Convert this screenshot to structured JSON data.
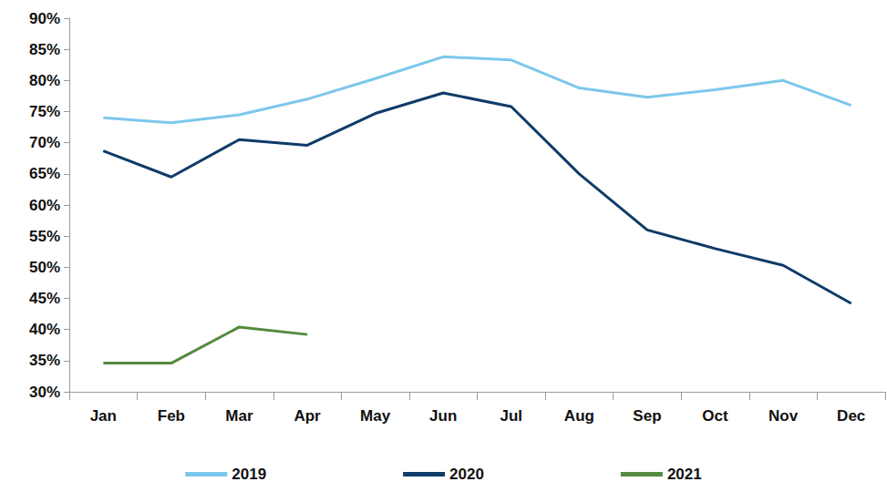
{
  "chart_data": {
    "type": "line",
    "categories": [
      "Jan",
      "Feb",
      "Mar",
      "Apr",
      "May",
      "Jun",
      "Jul",
      "Aug",
      "Sep",
      "Oct",
      "Nov",
      "Dec"
    ],
    "series": [
      {
        "name": "2019",
        "color": "#7cc7ec",
        "values": [
          74,
          73.2,
          74.5,
          77,
          80.3,
          83.8,
          83.3,
          78.8,
          77.3,
          78.5,
          80,
          76
        ]
      },
      {
        "name": "2020",
        "color": "#0f3b68",
        "values": [
          68.7,
          64.5,
          70.5,
          69.6,
          74.7,
          78,
          75.8,
          65,
          56,
          53,
          50.3,
          44.2
        ]
      },
      {
        "name": "2021",
        "color": "#548a3f",
        "values": [
          34.6,
          34.6,
          40.4,
          39.2,
          null,
          null,
          null,
          null,
          null,
          null,
          null,
          null
        ]
      }
    ],
    "ylim": [
      30,
      90
    ],
    "yticks": [
      {
        "value": 30,
        "label": "30%"
      },
      {
        "value": 35,
        "label": "35%"
      },
      {
        "value": 40,
        "label": "40%"
      },
      {
        "value": 45,
        "label": "45%"
      },
      {
        "value": 50,
        "label": "50%"
      },
      {
        "value": 55,
        "label": "55%"
      },
      {
        "value": 60,
        "label": "60%"
      },
      {
        "value": 65,
        "label": "65%"
      },
      {
        "value": 70,
        "label": "70%"
      },
      {
        "value": 75,
        "label": "75%"
      },
      {
        "value": 80,
        "label": "80%"
      },
      {
        "value": 85,
        "label": "85%"
      },
      {
        "value": 90,
        "label": "90%"
      }
    ],
    "grid": false,
    "legend": "bottom"
  }
}
